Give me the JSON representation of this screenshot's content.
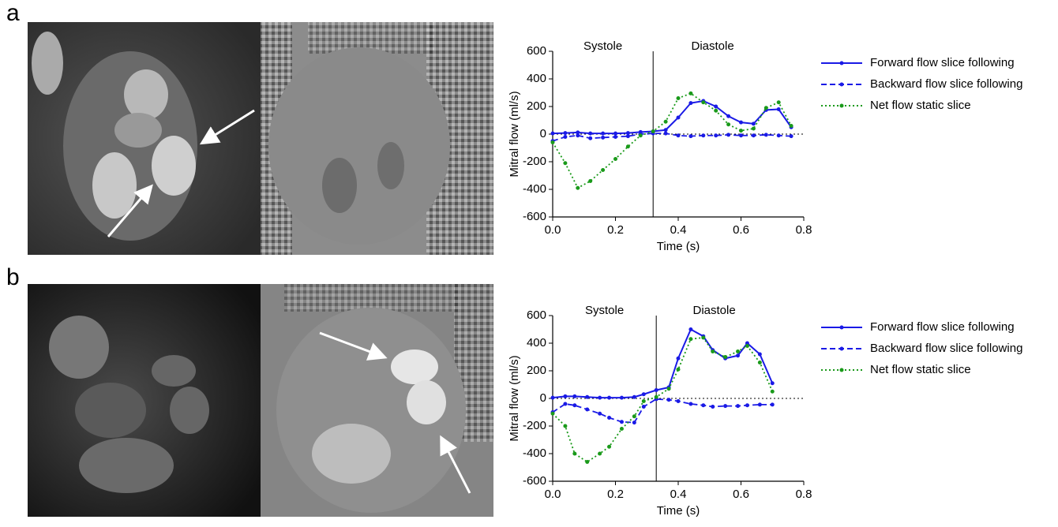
{
  "chart_data": [
    {
      "type": "line",
      "panel": "a",
      "xlabel": "Time (s)",
      "ylabel": "Mitral flow (ml/s)",
      "annotations": [
        "Systole",
        "Diastole"
      ],
      "divider_x": 0.32,
      "x": [
        0,
        0.04,
        0.08,
        0.12,
        0.16,
        0.2,
        0.24,
        0.28,
        0.32,
        0.36,
        0.4,
        0.44,
        0.48,
        0.52,
        0.56,
        0.6,
        0.64,
        0.68,
        0.72,
        0.76
      ],
      "series": [
        {
          "name": "Forward flow slice following",
          "color": "#1a1ae6",
          "dash": "solid",
          "values": [
            5,
            8,
            12,
            5,
            5,
            5,
            8,
            15,
            20,
            30,
            120,
            225,
            240,
            200,
            130,
            85,
            75,
            175,
            180,
            50
          ]
        },
        {
          "name": "Backward flow slice following",
          "color": "#1a1ae6",
          "dash": "dashed",
          "values": [
            -50,
            -20,
            -10,
            -30,
            -25,
            -20,
            -15,
            0,
            5,
            5,
            -10,
            -15,
            -10,
            -10,
            -5,
            -10,
            -10,
            -5,
            -10,
            -15
          ]
        },
        {
          "name": "Net flow static slice",
          "color": "#1a9a1a",
          "dash": "dotted",
          "values": [
            -60,
            -210,
            -390,
            -340,
            -260,
            -180,
            -90,
            -10,
            20,
            90,
            260,
            295,
            230,
            170,
            70,
            25,
            40,
            190,
            230,
            60
          ]
        }
      ],
      "xlim": [
        0,
        0.8
      ],
      "xticks": [
        {
          "value": 0,
          "label": "0.0"
        },
        0.2,
        0.4,
        0.6,
        0.8
      ],
      "ylim": [
        -600,
        600
      ],
      "yticks": [
        -600,
        -400,
        -200,
        0,
        200,
        400,
        600
      ]
    },
    {
      "type": "line",
      "panel": "b",
      "xlabel": "Time (s)",
      "ylabel": "Mitral flow (ml/s)",
      "annotations": [
        "Systole",
        "Diastole"
      ],
      "divider_x": 0.33,
      "x": [
        0,
        0.04,
        0.07,
        0.11,
        0.15,
        0.18,
        0.22,
        0.26,
        0.29,
        0.33,
        0.37,
        0.4,
        0.44,
        0.48,
        0.51,
        0.55,
        0.59,
        0.62,
        0.66,
        0.7
      ],
      "series": [
        {
          "name": "Forward flow slice following",
          "color": "#1a1ae6",
          "dash": "solid",
          "values": [
            5,
            15,
            15,
            10,
            5,
            5,
            5,
            10,
            30,
            60,
            80,
            290,
            500,
            450,
            350,
            290,
            310,
            400,
            320,
            110
          ]
        },
        {
          "name": "Backward flow slice following",
          "color": "#1a1ae6",
          "dash": "dashed",
          "values": [
            -100,
            -40,
            -50,
            -80,
            -110,
            -140,
            -170,
            -175,
            -60,
            -5,
            -10,
            -20,
            -40,
            -50,
            -60,
            -55,
            -55,
            -50,
            -45,
            -45
          ]
        },
        {
          "name": "Net flow static slice",
          "color": "#1a9a1a",
          "dash": "dotted",
          "values": [
            -110,
            -200,
            -400,
            -460,
            -400,
            -350,
            -220,
            -130,
            -20,
            10,
            70,
            210,
            430,
            440,
            340,
            300,
            340,
            380,
            260,
            50
          ]
        }
      ],
      "xlim": [
        0,
        0.8
      ],
      "xticks": [
        {
          "value": 0,
          "label": "0.0"
        },
        0.2,
        0.4,
        0.6,
        0.8
      ],
      "ylim": [
        -600,
        600
      ],
      "yticks": [
        -600,
        -400,
        -200,
        0,
        200,
        400,
        600
      ]
    }
  ]
}
